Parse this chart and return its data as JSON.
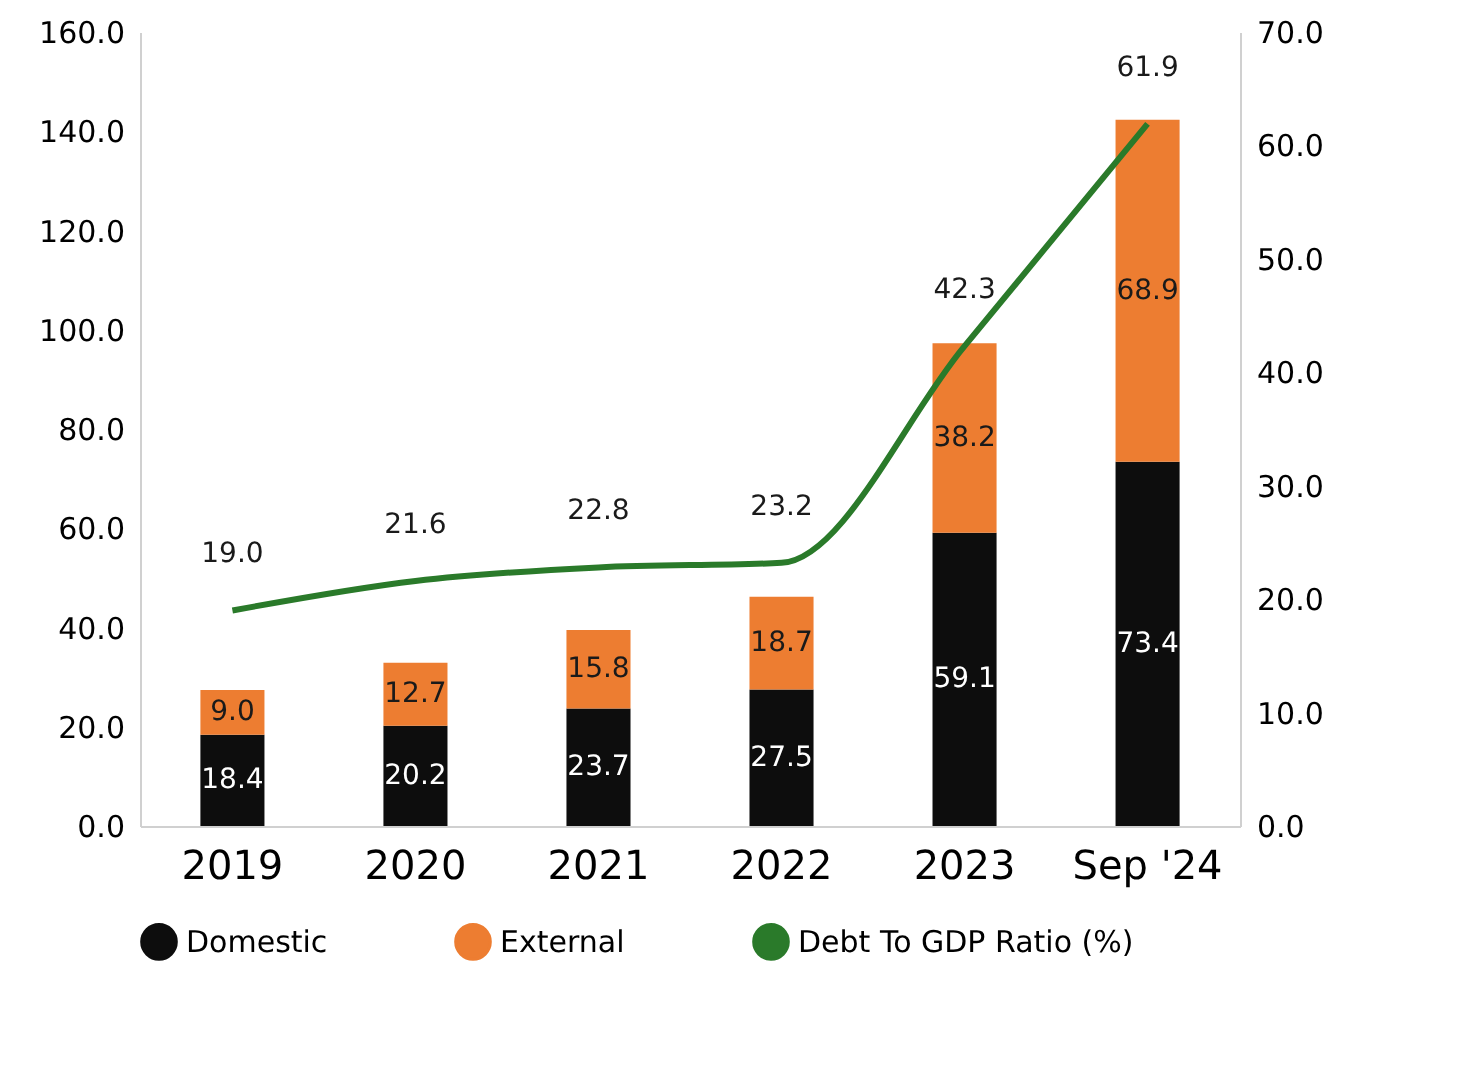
{
  "chart_data": {
    "type": "bar",
    "stacked": true,
    "legend": "bottom",
    "grid": false,
    "categories": [
      "2019",
      "2020",
      "2021",
      "2022",
      "2023",
      "Sep '24"
    ],
    "series": [
      {
        "name": "Domestic",
        "color": "#0d0d0d",
        "values": [
          18.4,
          20.2,
          23.7,
          27.5,
          59.1,
          73.4
        ],
        "value_labels": [
          "18.4",
          "20.2",
          "23.7",
          "27.5",
          "59.1",
          "73.4"
        ]
      },
      {
        "name": "External",
        "color": "#ed7d31",
        "values": [
          9.0,
          12.7,
          15.8,
          18.7,
          38.2,
          68.9
        ],
        "value_labels": [
          "9.0",
          "12.7",
          "15.8",
          "18.7",
          "38.2",
          "68.9"
        ]
      },
      {
        "name": "Debt To GDP Ratio (%)",
        "type": "line",
        "axis": "y2",
        "color": "#2a7a2a",
        "values": [
          19.0,
          21.6,
          22.8,
          23.2,
          42.3,
          61.9
        ],
        "value_labels": [
          "19.0",
          "21.6",
          "22.8",
          "23.2",
          "42.3",
          "61.9"
        ]
      }
    ],
    "ylim": [
      0,
      160
    ],
    "yticks": [
      {
        "value": 0,
        "label": "0.0"
      },
      {
        "value": 20,
        "label": "20.0"
      },
      {
        "value": 40,
        "label": "40.0"
      },
      {
        "value": 60,
        "label": "60.0"
      },
      {
        "value": 80,
        "label": "80.0"
      },
      {
        "value": 100,
        "label": "100.0"
      },
      {
        "value": 120,
        "label": "120.0"
      },
      {
        "value": 140,
        "label": "140.0"
      },
      {
        "value": 160,
        "label": "160.0"
      }
    ],
    "y2lim": [
      0,
      70
    ],
    "y2ticks": [
      {
        "value": 0,
        "label": "0.0"
      },
      {
        "value": 10,
        "label": "10.0"
      },
      {
        "value": 20,
        "label": "20.0"
      },
      {
        "value": 30,
        "label": "30.0"
      },
      {
        "value": 40,
        "label": "40.0"
      },
      {
        "value": 50,
        "label": "50.0"
      },
      {
        "value": 60,
        "label": "60.0"
      },
      {
        "value": 70,
        "label": "70.0"
      }
    ]
  }
}
